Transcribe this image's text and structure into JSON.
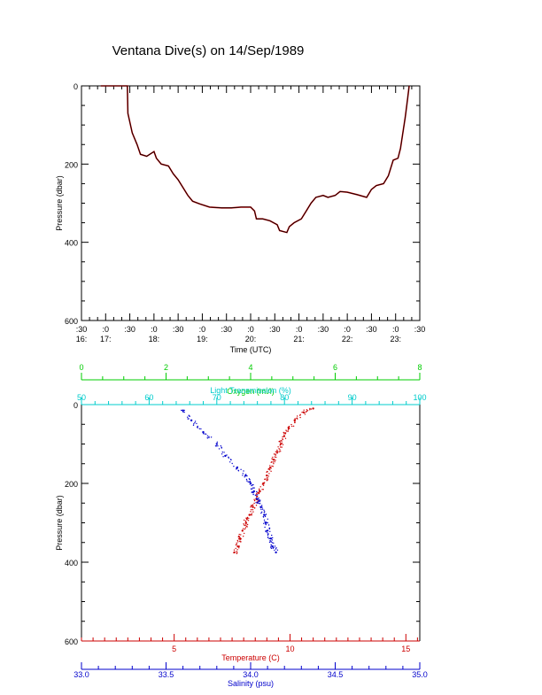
{
  "title": "Ventana Dive(s) on 14/Sep/1989",
  "colors": {
    "axis": "#000000",
    "oxygen": "#00cc00",
    "light": "#00cccc",
    "temperature": "#cc0000",
    "salinity": "#0000cc",
    "trace_dark": "#000000",
    "trace_red": "#cc0000"
  },
  "chart_data": [
    {
      "type": "line",
      "ylabel": "Pressure (dbar)",
      "xlabel": "Time (UTC)",
      "ylim": [
        600,
        0
      ],
      "yticks": [
        "0",
        "200",
        "400",
        "600"
      ],
      "xticks": [
        {
          "top": ":30",
          "bottom": "16:"
        },
        {
          "top": ":0",
          "bottom": "17:"
        },
        {
          "top": ":30",
          "bottom": ""
        },
        {
          "top": ":0",
          "bottom": "18:"
        },
        {
          "top": ":30",
          "bottom": ""
        },
        {
          "top": ":0",
          "bottom": "19:"
        },
        {
          "top": ":30",
          "bottom": ""
        },
        {
          "top": ":0",
          "bottom": "20:"
        },
        {
          "top": ":30",
          "bottom": ""
        },
        {
          "top": ":0",
          "bottom": "21:"
        },
        {
          "top": ":30",
          "bottom": ""
        },
        {
          "top": ":0",
          "bottom": "22:"
        },
        {
          "top": ":30",
          "bottom": ""
        },
        {
          "top": ":0",
          "bottom": "23:"
        },
        {
          "top": ":30",
          "bottom": ""
        }
      ],
      "xlim_hours": [
        16.5,
        23.5
      ],
      "series": [
        {
          "points": [
            [
              16.9,
              0
            ],
            [
              17.2,
              0
            ],
            [
              17.45,
              0
            ],
            [
              17.46,
              70
            ],
            [
              17.55,
              120
            ],
            [
              17.65,
              150
            ],
            [
              17.72,
              175
            ],
            [
              17.85,
              180
            ],
            [
              17.95,
              172
            ],
            [
              18.0,
              168
            ],
            [
              18.05,
              185
            ],
            [
              18.15,
              200
            ],
            [
              18.3,
              205
            ],
            [
              18.4,
              225
            ],
            [
              18.5,
              240
            ],
            [
              18.6,
              260
            ],
            [
              18.7,
              280
            ],
            [
              18.8,
              295
            ],
            [
              18.95,
              302
            ],
            [
              19.15,
              310
            ],
            [
              19.4,
              312
            ],
            [
              19.6,
              312
            ],
            [
              19.8,
              310
            ],
            [
              20.0,
              310
            ],
            [
              20.08,
              320
            ],
            [
              20.12,
              340
            ],
            [
              20.25,
              340
            ],
            [
              20.4,
              345
            ],
            [
              20.55,
              355
            ],
            [
              20.6,
              370
            ],
            [
              20.75,
              375
            ],
            [
              20.8,
              360
            ],
            [
              20.9,
              350
            ],
            [
              21.05,
              340
            ],
            [
              21.15,
              320
            ],
            [
              21.25,
              300
            ],
            [
              21.35,
              285
            ],
            [
              21.5,
              280
            ],
            [
              21.6,
              285
            ],
            [
              21.75,
              280
            ],
            [
              21.85,
              270
            ],
            [
              22.0,
              272
            ],
            [
              22.2,
              278
            ],
            [
              22.4,
              285
            ],
            [
              22.5,
              265
            ],
            [
              22.6,
              255
            ],
            [
              22.75,
              250
            ],
            [
              22.85,
              230
            ],
            [
              22.95,
              190
            ],
            [
              23.05,
              185
            ],
            [
              23.1,
              160
            ],
            [
              23.15,
              120
            ],
            [
              23.2,
              80
            ],
            [
              23.25,
              30
            ],
            [
              23.28,
              0
            ]
          ]
        }
      ]
    },
    {
      "type": "scatter",
      "ylabel": "Pressure (dbar)",
      "ylim": [
        600,
        0
      ],
      "yticks": [
        "0",
        "200",
        "400",
        "600"
      ],
      "axes": {
        "oxygen": {
          "label": "Oxygen (ml/l)",
          "range": [
            0,
            8
          ],
          "ticks": [
            "0",
            "2",
            "4",
            "6",
            "8"
          ]
        },
        "light": {
          "label": "Light Transmission (%)",
          "range": [
            50,
            100
          ],
          "ticks": [
            "50",
            "60",
            "70",
            "80",
            "90",
            "100"
          ]
        },
        "temperature": {
          "label": "Temperature (C)",
          "range": [
            1,
            15.6
          ],
          "ticks": [
            "5",
            "10",
            "15"
          ]
        },
        "salinity": {
          "label": "Salinity (psu)",
          "range": [
            33.0,
            35.0
          ],
          "ticks": [
            "33.0",
            "33.5",
            "34.0",
            "34.5",
            "35.0"
          ]
        }
      },
      "series": [
        {
          "axis": "temperature",
          "points": [
            [
              11.0,
              10
            ],
            [
              10.6,
              20
            ],
            [
              10.2,
              40
            ],
            [
              9.95,
              60
            ],
            [
              9.75,
              80
            ],
            [
              9.6,
              100
            ],
            [
              9.45,
              120
            ],
            [
              9.3,
              140
            ],
            [
              9.15,
              160
            ],
            [
              9.0,
              180
            ],
            [
              8.85,
              200
            ],
            [
              8.7,
              220
            ],
            [
              8.55,
              240
            ],
            [
              8.4,
              260
            ],
            [
              8.25,
              280
            ],
            [
              8.1,
              300
            ],
            [
              7.95,
              320
            ],
            [
              7.85,
              340
            ],
            [
              7.75,
              360
            ],
            [
              7.6,
              375
            ]
          ]
        },
        {
          "axis": "salinity",
          "points": [
            [
              33.6,
              15
            ],
            [
              33.65,
              40
            ],
            [
              33.72,
              70
            ],
            [
              33.8,
              100
            ],
            [
              33.85,
              130
            ],
            [
              33.92,
              160
            ],
            [
              33.97,
              180
            ],
            [
              34.0,
              200
            ],
            [
              34.02,
              220
            ],
            [
              34.04,
              240
            ],
            [
              34.06,
              260
            ],
            [
              34.08,
              280
            ],
            [
              34.09,
              300
            ],
            [
              34.1,
              320
            ],
            [
              34.12,
              340
            ],
            [
              34.13,
              360
            ],
            [
              34.15,
              375
            ]
          ]
        }
      ]
    }
  ]
}
